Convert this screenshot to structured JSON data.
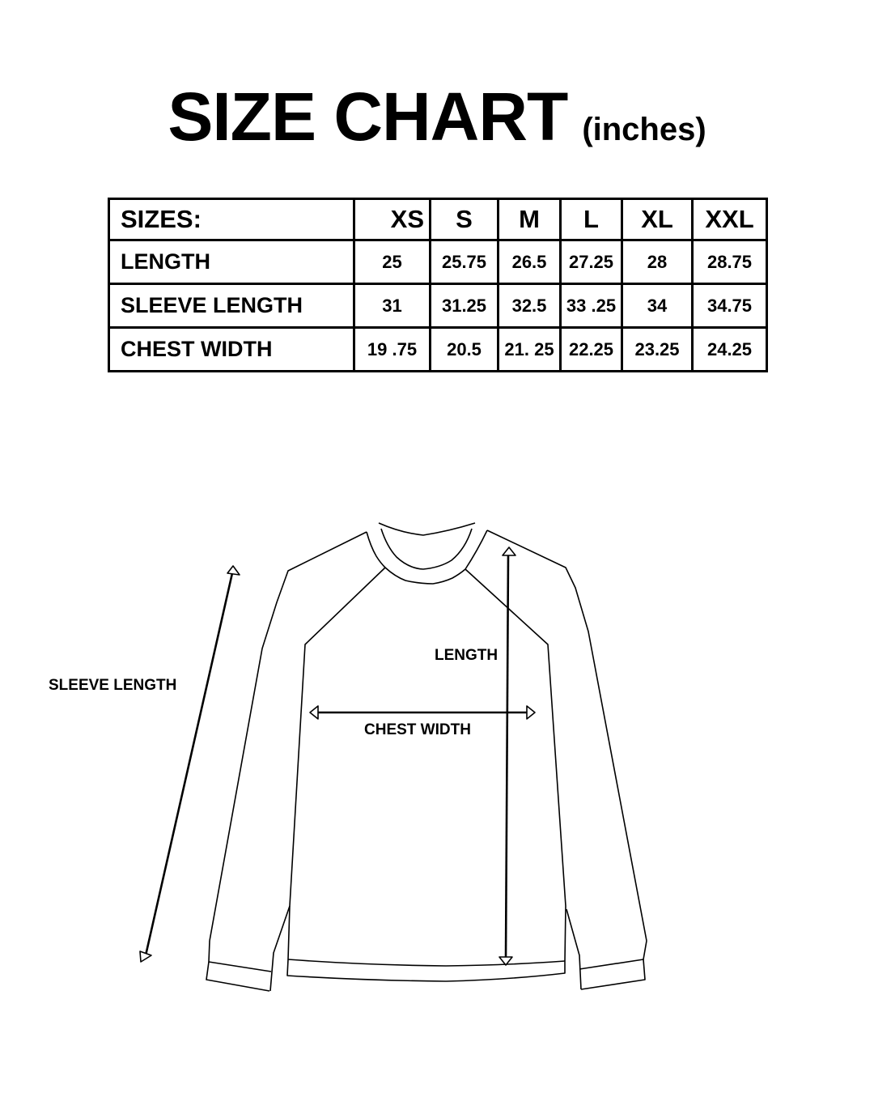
{
  "title": {
    "main": "SIZE CHART",
    "unit": "(inches)"
  },
  "table": {
    "header_label": "SIZES:",
    "sizes": [
      "XS",
      "S",
      "M",
      "L",
      "XL",
      "XXL"
    ],
    "rows": [
      {
        "label": "LENGTH",
        "values": [
          "25",
          "25.75",
          "26.5",
          "27.25",
          "28",
          "28.75"
        ]
      },
      {
        "label": "SLEEVE LENGTH",
        "values": [
          "31",
          "31.25",
          "32.5",
          "33 .25",
          "34",
          "34.75"
        ]
      },
      {
        "label": "CHEST WIDTH",
        "values": [
          "19 .75",
          "20.5",
          "21. 25",
          "22.25",
          "23.25",
          "24.25"
        ]
      }
    ]
  },
  "diagram": {
    "sleeve_label": "SLEEVE LENGTH",
    "length_label": "LENGTH",
    "chest_label": "CHEST WIDTH"
  }
}
